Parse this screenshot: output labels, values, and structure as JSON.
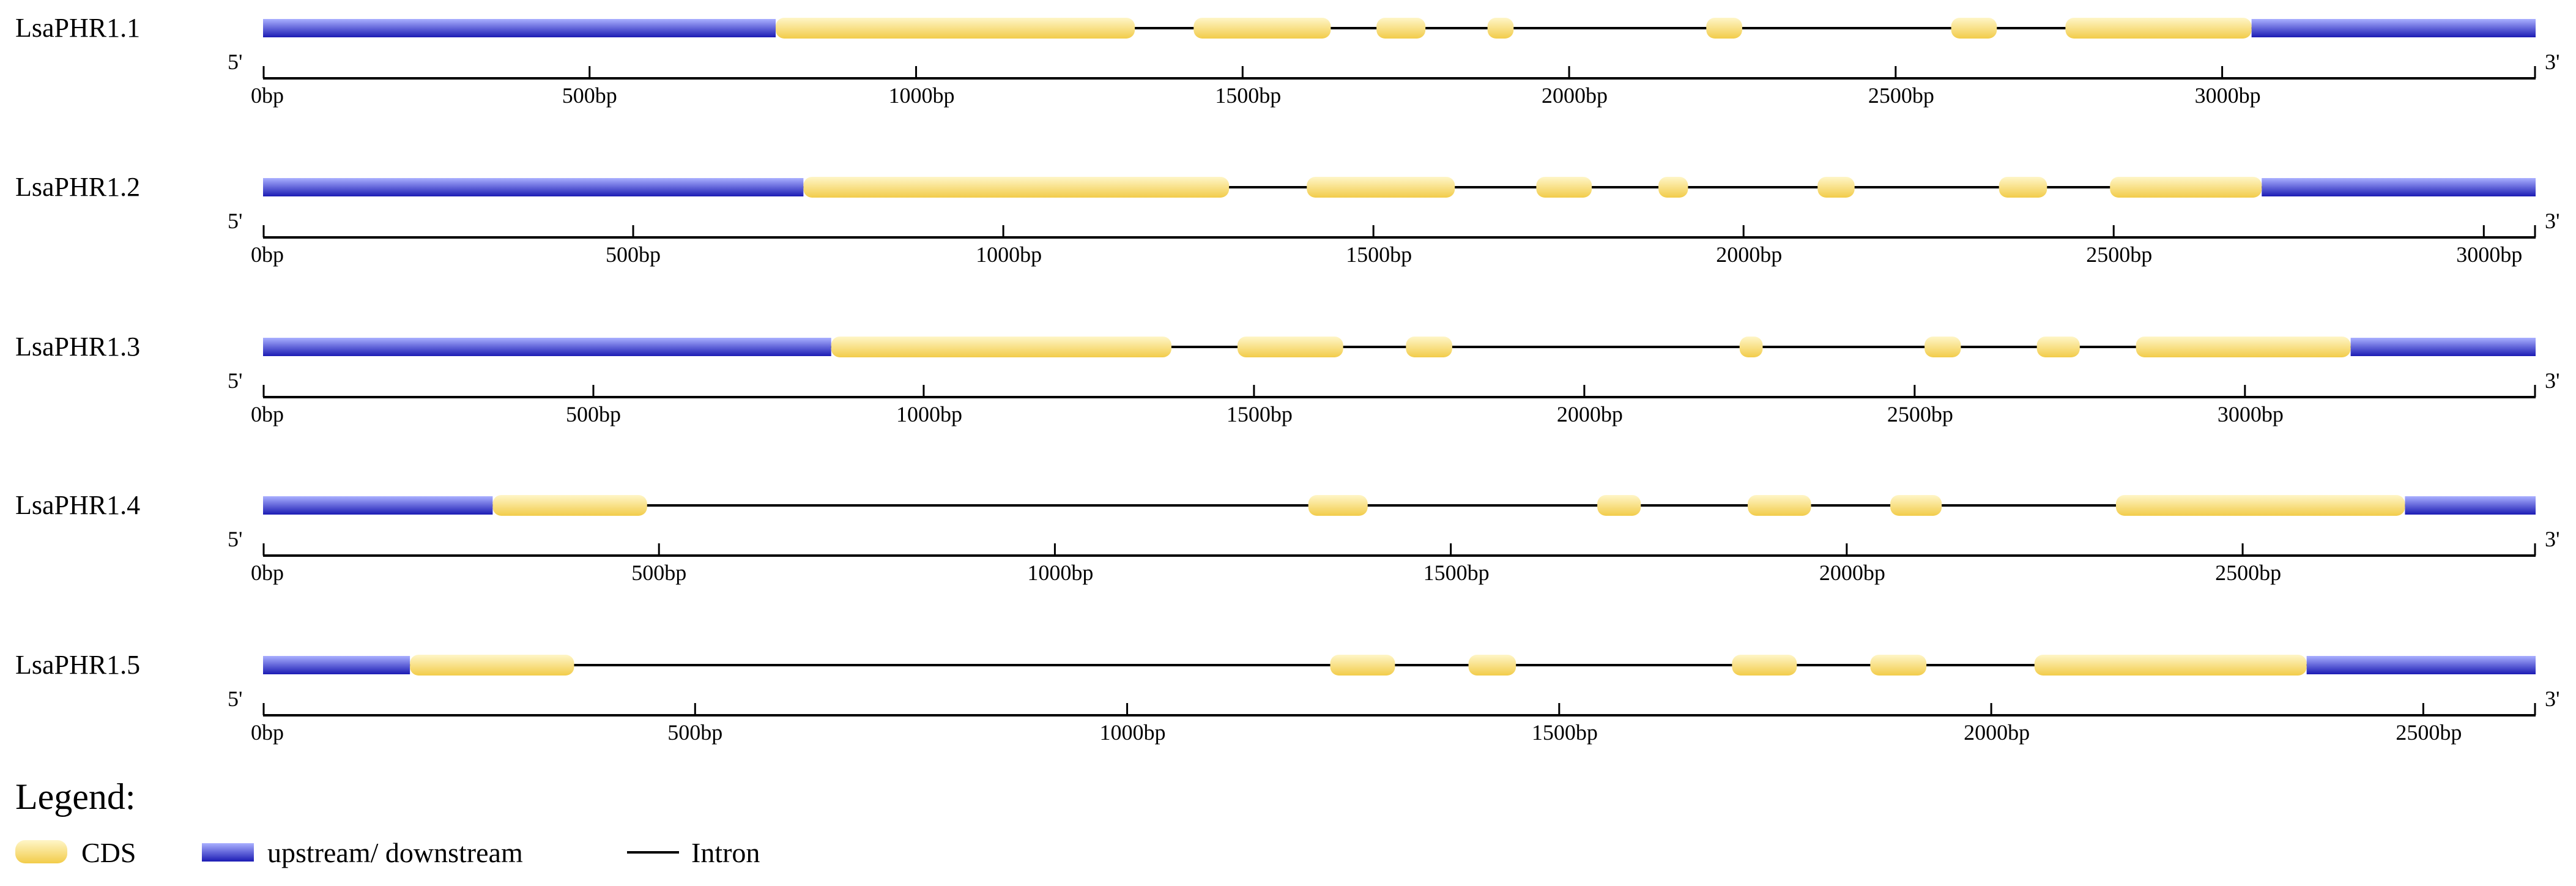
{
  "genes": [
    {
      "name": "LsaPHR1.1",
      "five_prime": "5'",
      "three_prime": "3'",
      "length": 3480,
      "max_tick": 3000,
      "utr": [
        [
          0,
          785
        ],
        [
          3045,
          3480
        ]
      ],
      "cds": [
        [
          785,
          1335
        ],
        [
          1425,
          1635
        ],
        [
          1705,
          1780
        ],
        [
          1875,
          1915
        ],
        [
          2210,
          2265
        ],
        [
          2585,
          2655
        ],
        [
          2760,
          3045
        ]
      ],
      "ticks": [
        "0bp",
        "500bp",
        "1000bp",
        "1500bp",
        "2000bp",
        "2500bp",
        "3000bp"
      ]
    },
    {
      "name": "LsaPHR1.2",
      "five_prime": "5'",
      "three_prime": "3'",
      "length": 3070,
      "max_tick": 3000,
      "utr": [
        [
          0,
          730
        ],
        [
          2700,
          3070
        ]
      ],
      "cds": [
        [
          730,
          1305
        ],
        [
          1410,
          1610
        ],
        [
          1720,
          1795
        ],
        [
          1885,
          1925
        ],
        [
          2100,
          2150
        ],
        [
          2345,
          2410
        ],
        [
          2495,
          2700
        ]
      ],
      "ticks": [
        "0bp",
        "500bp",
        "1000bp",
        "1500bp",
        "2000bp",
        "2500bp",
        "3000bp"
      ]
    },
    {
      "name": "LsaPHR1.3",
      "five_prime": "5'",
      "three_prime": "3'",
      "length": 3440,
      "max_tick": 3000,
      "utr": [
        [
          0,
          860
        ],
        [
          3160,
          3440
        ]
      ],
      "cds": [
        [
          860,
          1375
        ],
        [
          1475,
          1635
        ],
        [
          1730,
          1800
        ],
        [
          2235,
          2270
        ],
        [
          2515,
          2570
        ],
        [
          2685,
          2750
        ],
        [
          2835,
          3160
        ]
      ],
      "ticks": [
        "0bp",
        "500bp",
        "1000bp",
        "1500bp",
        "2000bp",
        "2500bp",
        "3000bp"
      ]
    },
    {
      "name": "LsaPHR1.4",
      "five_prime": "5'",
      "three_prime": "3'",
      "length": 2870,
      "max_tick": 2500,
      "utr": [
        [
          0,
          290
        ],
        [
          2705,
          2870
        ]
      ],
      "cds": [
        [
          290,
          485
        ],
        [
          1320,
          1395
        ],
        [
          1685,
          1740
        ],
        [
          1875,
          1955
        ],
        [
          2055,
          2120
        ],
        [
          2340,
          2705
        ]
      ],
      "ticks": [
        "0bp",
        "500bp",
        "1000bp",
        "1500bp",
        "2000bp",
        "2500bp"
      ]
    },
    {
      "name": "LsaPHR1.5",
      "five_prime": "5'",
      "three_prime": "3'",
      "length": 2630,
      "max_tick": 2500,
      "utr": [
        [
          0,
          170
        ],
        [
          2365,
          2630
        ]
      ],
      "cds": [
        [
          170,
          360
        ],
        [
          1235,
          1310
        ],
        [
          1395,
          1450
        ],
        [
          1700,
          1775
        ],
        [
          1860,
          1925
        ],
        [
          2050,
          2365
        ]
      ],
      "ticks": [
        "0bp",
        "500bp",
        "1000bp",
        "1500bp",
        "2000bp",
        "2500bp"
      ]
    }
  ],
  "legend": {
    "title": "Legend:",
    "items": [
      {
        "label": "CDS",
        "kind": "cds"
      },
      {
        "label": "upstream/ downstream",
        "kind": "utr"
      },
      {
        "label": "Intron",
        "kind": "intron"
      }
    ]
  },
  "colors": {
    "cds_light": "#fff6c8",
    "cds_dark": "#f2cc4a",
    "utr_light": "#aab0ff",
    "utr_dark": "#1c1cb4",
    "line": "#000000"
  }
}
